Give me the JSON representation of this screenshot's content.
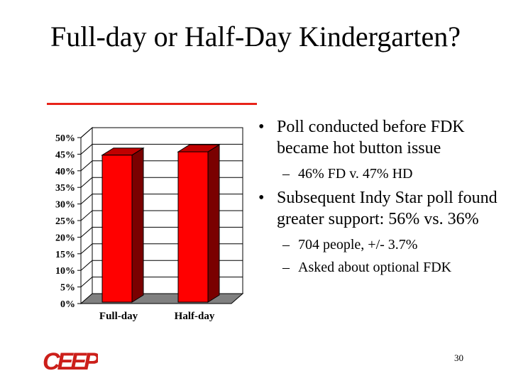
{
  "slide": {
    "title": "Full-day or Half-Day Kindergarten?",
    "page_number": "30",
    "logo_text": "CEEP",
    "accent_color": "#e8231a"
  },
  "bullets": [
    {
      "text": "Poll conducted before FDK became hot button issue",
      "subs": [
        "46% FD v. 47% HD"
      ]
    },
    {
      "text": "Subsequent Indy Star poll found greater support: 56% vs. 36%",
      "subs": [
        "704 people, +/- 3.7%",
        "Asked about optional FDK"
      ]
    }
  ],
  "chart_data": {
    "type": "bar",
    "categories": [
      "Full-day",
      "Half-day"
    ],
    "values": [
      46,
      47
    ],
    "ylim": [
      0,
      50
    ],
    "yticks": [
      "0%",
      "5%",
      "10%",
      "15%",
      "20%",
      "25%",
      "30%",
      "35%",
      "40%",
      "45%",
      "50%"
    ],
    "grid": true,
    "bar_color": "#ff0000",
    "title": "",
    "xlabel": "",
    "ylabel": ""
  }
}
